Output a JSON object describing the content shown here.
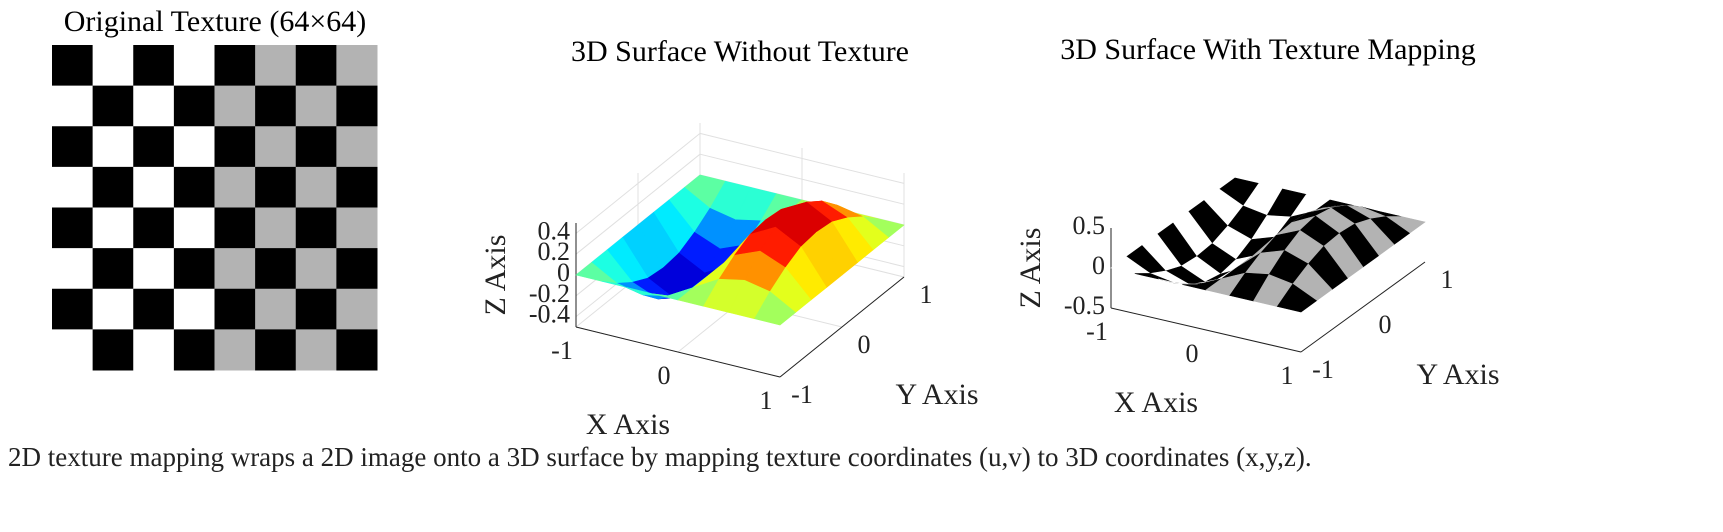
{
  "chart_data": [
    {
      "type": "image",
      "title": "Original Texture (64×64)",
      "texture": [
        [
          0,
          1,
          0,
          1,
          0,
          0.7,
          0,
          0.7
        ],
        [
          1,
          0,
          1,
          0,
          0.7,
          0,
          0.7,
          0
        ],
        [
          0,
          1,
          0,
          1,
          0,
          0.7,
          0,
          0.7
        ],
        [
          1,
          0,
          1,
          0,
          0.7,
          0,
          0.7,
          0
        ],
        [
          0,
          1,
          0,
          1,
          0,
          0.7,
          0,
          0.7
        ],
        [
          1,
          0,
          1,
          0,
          0.7,
          0,
          0.7,
          0
        ],
        [
          0,
          1,
          0,
          1,
          0,
          0.7,
          0,
          0.7
        ],
        [
          1,
          0,
          1,
          0,
          0.7,
          0,
          0.7,
          0
        ]
      ]
    },
    {
      "type": "surface",
      "title": "3D Surface Without Texture",
      "xlabel": "X Axis",
      "ylabel": "Y Axis",
      "zlabel": "Z Axis",
      "x": [
        -1,
        -0.75,
        -0.5,
        -0.25,
        0,
        0.25,
        0.5,
        0.75,
        1
      ],
      "y": [
        -1,
        -0.75,
        -0.5,
        -0.25,
        0,
        0.25,
        0.5,
        0.75,
        1
      ],
      "z": [
        [
          0,
          0,
          0,
          0,
          0,
          0,
          0,
          0,
          0
        ],
        [
          0,
          -0.14,
          -0.19,
          -0.14,
          0,
          0.14,
          0.19,
          0.14,
          0
        ],
        [
          0,
          -0.25,
          -0.35,
          -0.25,
          0,
          0.25,
          0.35,
          0.25,
          0
        ],
        [
          0,
          -0.33,
          -0.46,
          -0.33,
          0,
          0.33,
          0.46,
          0.33,
          0
        ],
        [
          0,
          -0.35,
          -0.5,
          -0.35,
          0,
          0.35,
          0.5,
          0.35,
          0
        ],
        [
          0,
          -0.33,
          -0.46,
          -0.33,
          0,
          0.33,
          0.46,
          0.33,
          0
        ],
        [
          0,
          -0.25,
          -0.35,
          -0.25,
          0,
          0.25,
          0.35,
          0.25,
          0
        ],
        [
          0,
          -0.14,
          -0.19,
          -0.14,
          0,
          0.14,
          0.19,
          0.14,
          0
        ],
        [
          0,
          0,
          0,
          0,
          0,
          0,
          0,
          0,
          0
        ]
      ],
      "xlim": [
        -1,
        1
      ],
      "ylim": [
        -1,
        1
      ],
      "zlim": [
        -0.5,
        0.5
      ],
      "xticks": [
        -1,
        0,
        1
      ],
      "yticks": [
        -1,
        0,
        1
      ],
      "zticks": [
        -0.4,
        -0.2,
        0,
        0.2,
        0.4
      ],
      "colormap": "jet",
      "grid": true
    },
    {
      "type": "surface",
      "title": "3D Surface With Texture Mapping",
      "xlabel": "X Axis",
      "ylabel": "Y Axis",
      "zlabel": "Z Axis",
      "x": [
        -1,
        -0.75,
        -0.5,
        -0.25,
        0,
        0.25,
        0.5,
        0.75,
        1
      ],
      "y": [
        -1,
        -0.75,
        -0.5,
        -0.25,
        0,
        0.25,
        0.5,
        0.75,
        1
      ],
      "z": [
        [
          0,
          0,
          0,
          0,
          0,
          0,
          0,
          0,
          0
        ],
        [
          0,
          -0.14,
          -0.19,
          -0.14,
          0,
          0.14,
          0.19,
          0.14,
          0
        ],
        [
          0,
          -0.25,
          -0.35,
          -0.25,
          0,
          0.25,
          0.35,
          0.25,
          0
        ],
        [
          0,
          -0.33,
          -0.46,
          -0.33,
          0,
          0.33,
          0.46,
          0.33,
          0
        ],
        [
          0,
          -0.35,
          -0.5,
          -0.35,
          0,
          0.35,
          0.5,
          0.35,
          0
        ],
        [
          0,
          -0.33,
          -0.46,
          -0.33,
          0,
          0.33,
          0.46,
          0.33,
          0
        ],
        [
          0,
          -0.25,
          -0.35,
          -0.25,
          0,
          0.25,
          0.35,
          0.25,
          0
        ],
        [
          0,
          -0.14,
          -0.19,
          -0.14,
          0,
          0.14,
          0.19,
          0.14,
          0
        ],
        [
          0,
          0,
          0,
          0,
          0,
          0,
          0,
          0,
          0
        ]
      ],
      "xlim": [
        -1,
        1
      ],
      "ylim": [
        -1,
        1
      ],
      "zlim": [
        -0.5,
        0.5
      ],
      "xticks": [
        -1,
        0,
        1
      ],
      "yticks": [
        -1,
        0,
        1
      ],
      "zticks": [
        -0.5,
        0,
        0.5
      ],
      "colormap": "texture",
      "grid": false
    }
  ],
  "caption": "2D texture mapping wraps a 2D image onto a 3D surface by mapping texture coordinates (u,v) to 3D coordinates (x,y,z)."
}
